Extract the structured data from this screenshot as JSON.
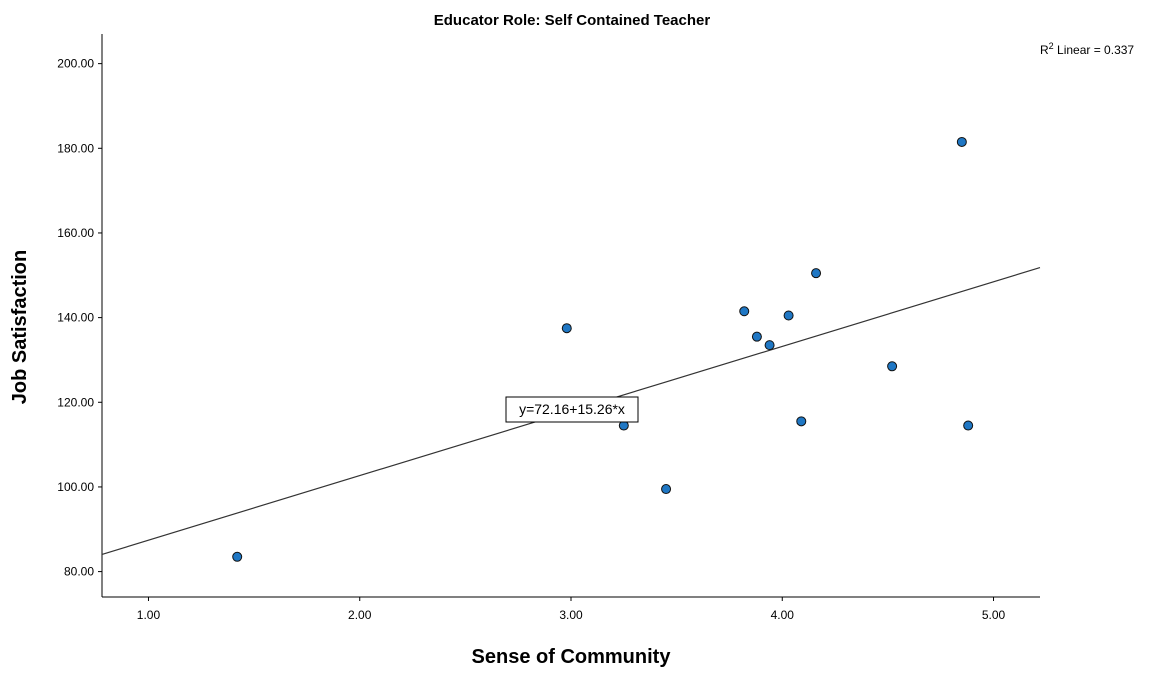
{
  "chart_data": {
    "type": "scatter",
    "title": "Educator Role: Self Contained Teacher",
    "xlabel": "Sense of Community",
    "ylabel": "Job Satisfaction",
    "xlim": [
      0.78,
      5.22
    ],
    "ylim": [
      74,
      207
    ],
    "xticks": [
      "1.00",
      "2.00",
      "3.00",
      "4.00",
      "5.00"
    ],
    "yticks": [
      "80.00",
      "100.00",
      "120.00",
      "140.00",
      "160.00",
      "180.00",
      "200.00"
    ],
    "grid": false,
    "marker_color": "#1f77c4",
    "points": [
      {
        "x": 1.42,
        "y": 83.5
      },
      {
        "x": 2.98,
        "y": 137.5
      },
      {
        "x": 3.25,
        "y": 114.5
      },
      {
        "x": 3.45,
        "y": 99.5
      },
      {
        "x": 3.82,
        "y": 141.5
      },
      {
        "x": 3.88,
        "y": 135.5
      },
      {
        "x": 3.94,
        "y": 133.5
      },
      {
        "x": 4.03,
        "y": 140.5
      },
      {
        "x": 4.09,
        "y": 115.5
      },
      {
        "x": 4.16,
        "y": 150.5
      },
      {
        "x": 4.52,
        "y": 128.5
      },
      {
        "x": 4.85,
        "y": 181.5
      },
      {
        "x": 4.88,
        "y": 114.5
      }
    ],
    "fit_line": {
      "intercept": 72.16,
      "slope": 15.26
    },
    "fit_equation_label": "y=72.16+15.26*x",
    "r2_prefix": "R",
    "r2_superscript": "2",
    "r2_label": " Linear = 0.337"
  }
}
